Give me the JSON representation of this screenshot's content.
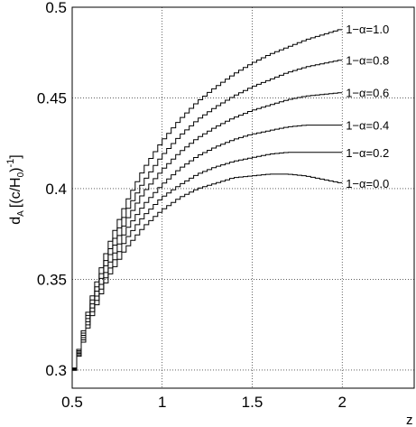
{
  "chart_data": {
    "type": "line",
    "title": "",
    "xlabel": "z",
    "ylabel": "d_A [(c/H_0)^-1]",
    "ylabel_parts": {
      "main": "d",
      "sub": "A",
      "bracket_open": "[(c/H",
      "sub2": "0",
      "bracket_close": ")",
      "sup": "-1",
      "end": "]"
    },
    "xlim": [
      0.5,
      2.4
    ],
    "ylim": [
      0.29,
      0.5
    ],
    "xticks": [
      0.5,
      1,
      1.5,
      2
    ],
    "xtick_labels": [
      "0.5",
      "1",
      "1.5",
      "2"
    ],
    "yticks": [
      0.3,
      0.35,
      0.4,
      0.45,
      0.5
    ],
    "ytick_labels": [
      "0.3",
      "0.35",
      "0.4",
      "0.45",
      "0.5"
    ],
    "grid": true,
    "x": [
      0.5,
      0.6,
      0.7,
      0.8,
      0.9,
      1.0,
      1.1,
      1.2,
      1.3,
      1.4,
      1.5,
      1.6,
      1.7,
      1.8,
      1.9,
      2.0
    ],
    "series": [
      {
        "name": "1−α=1.0",
        "values": [
          0.296,
          0.337,
          0.368,
          0.392,
          0.411,
          0.426,
          0.438,
          0.448,
          0.456,
          0.463,
          0.469,
          0.474,
          0.478,
          0.482,
          0.485,
          0.488
        ]
      },
      {
        "name": "1−α=0.8",
        "values": [
          0.296,
          0.335,
          0.364,
          0.387,
          0.404,
          0.418,
          0.429,
          0.438,
          0.445,
          0.451,
          0.456,
          0.46,
          0.464,
          0.467,
          0.469,
          0.471
        ]
      },
      {
        "name": "1−α=0.6",
        "values": [
          0.296,
          0.333,
          0.361,
          0.382,
          0.398,
          0.41,
          0.42,
          0.428,
          0.434,
          0.439,
          0.443,
          0.446,
          0.449,
          0.451,
          0.452,
          0.453
        ]
      },
      {
        "name": "1−α=0.4",
        "values": [
          0.296,
          0.331,
          0.357,
          0.377,
          0.391,
          0.402,
          0.411,
          0.418,
          0.423,
          0.427,
          0.43,
          0.432,
          0.434,
          0.435,
          0.435,
          0.435
        ]
      },
      {
        "name": "1−α=0.2",
        "values": [
          0.296,
          0.329,
          0.354,
          0.372,
          0.385,
          0.395,
          0.402,
          0.408,
          0.412,
          0.415,
          0.417,
          0.419,
          0.42,
          0.42,
          0.42,
          0.42
        ]
      },
      {
        "name": "1−α=0.0",
        "values": [
          0.296,
          0.327,
          0.351,
          0.367,
          0.379,
          0.388,
          0.395,
          0.4,
          0.403,
          0.406,
          0.407,
          0.408,
          0.408,
          0.407,
          0.405,
          0.403
        ]
      }
    ]
  }
}
